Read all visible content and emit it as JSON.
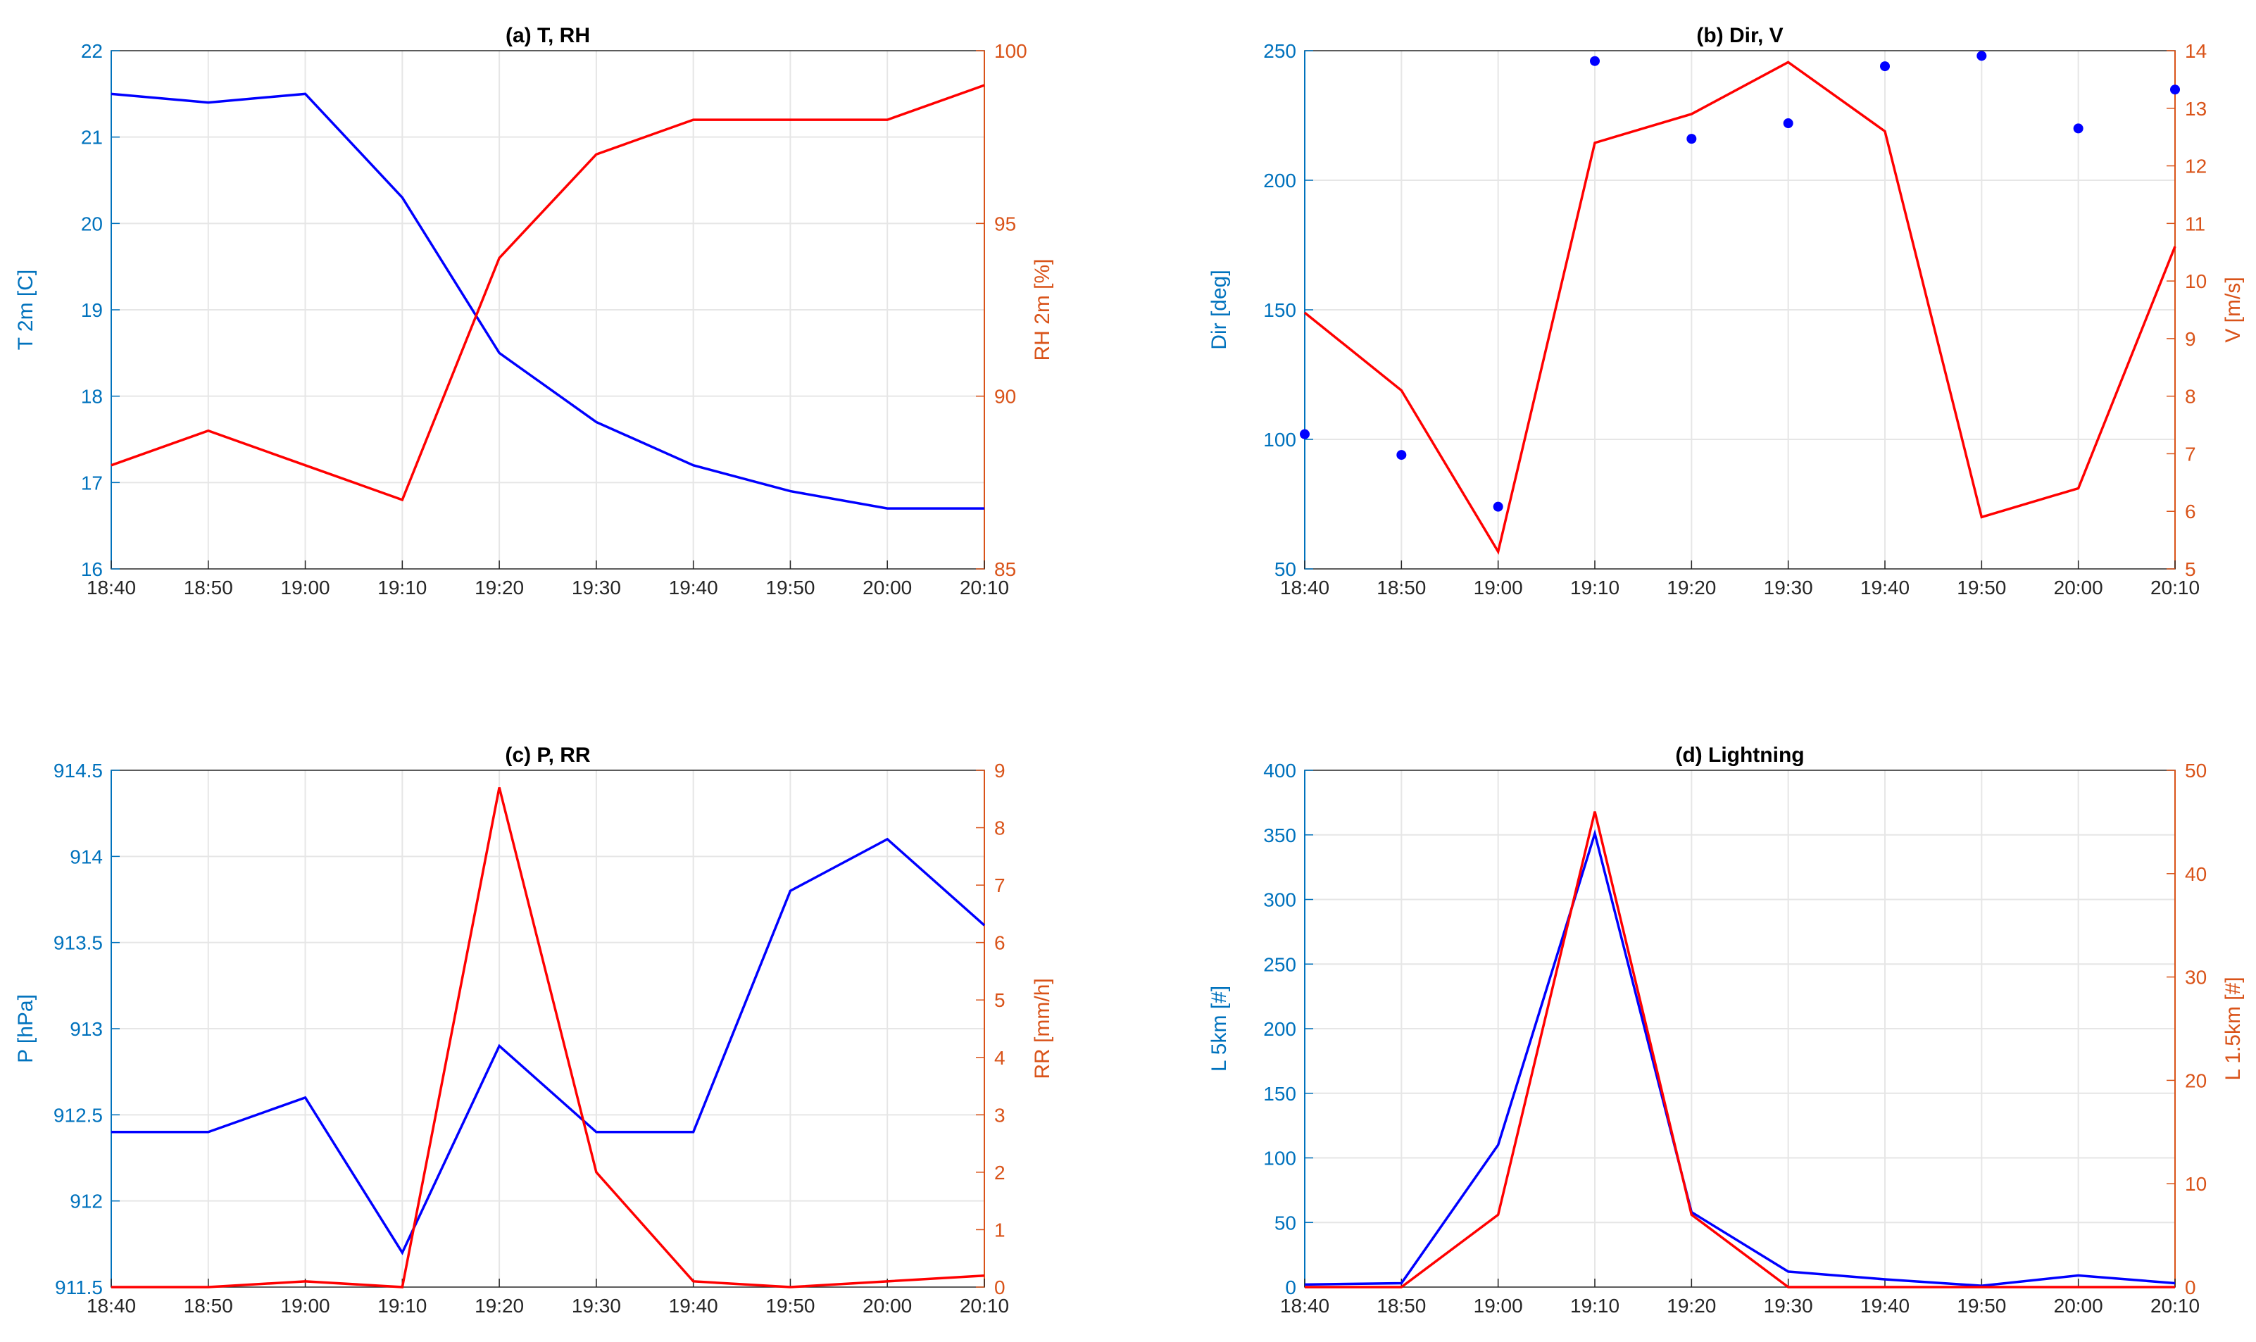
{
  "colors": {
    "left_axis": "#0072BD",
    "right_axis": "#D95319",
    "series_blue": "#0000FF",
    "series_red": "#FF0000",
    "grid": "#E6E6E6",
    "frame": "#262626"
  },
  "chart_data": [
    {
      "type": "line",
      "title": "(a) T, RH",
      "categories": [
        "18:40",
        "18:50",
        "19:00",
        "19:10",
        "19:20",
        "19:30",
        "19:40",
        "19:50",
        "20:00",
        "20:10"
      ],
      "left_axis": {
        "label": "T 2m [C]",
        "ylim": [
          16,
          22
        ],
        "ticks": [
          "16",
          "17",
          "18",
          "19",
          "20",
          "21",
          "22"
        ]
      },
      "right_axis": {
        "label": "RH 2m [%]",
        "ylim": [
          85,
          100
        ],
        "ticks": [
          "85",
          "90",
          "95",
          "100"
        ]
      },
      "series": [
        {
          "name": "T 2m",
          "axis": "left",
          "style": "line",
          "color": "#0000FF",
          "values": [
            21.5,
            21.4,
            21.5,
            20.3,
            18.5,
            17.7,
            17.2,
            16.9,
            16.7,
            16.7
          ]
        },
        {
          "name": "RH 2m",
          "axis": "right",
          "style": "line",
          "color": "#FF0000",
          "values": [
            88,
            89,
            88,
            87,
            94,
            97,
            98,
            98,
            98,
            99
          ]
        }
      ]
    },
    {
      "type": "line",
      "title": "(b) Dir, V",
      "categories": [
        "18:40",
        "18:50",
        "19:00",
        "19:10",
        "19:20",
        "19:30",
        "19:40",
        "19:50",
        "20:00",
        "20:10"
      ],
      "left_axis": {
        "label": "Dir [deg]",
        "ylim": [
          50,
          250
        ],
        "ticks": [
          "50",
          "100",
          "150",
          "200",
          "250"
        ]
      },
      "right_axis": {
        "label": "V [m/s]",
        "ylim": [
          5,
          14
        ],
        "ticks": [
          "5",
          "6",
          "7",
          "8",
          "9",
          "10",
          "11",
          "12",
          "13",
          "14"
        ]
      },
      "series": [
        {
          "name": "Dir",
          "axis": "left",
          "style": "scatter",
          "color": "#0000FF",
          "values": [
            102,
            94,
            74,
            246,
            216,
            222,
            244,
            248,
            220,
            235
          ]
        },
        {
          "name": "V",
          "axis": "right",
          "style": "line",
          "color": "#FF0000",
          "values": [
            9.45,
            8.1,
            5.3,
            12.4,
            12.9,
            13.8,
            12.6,
            5.9,
            6.4,
            10.6
          ]
        }
      ]
    },
    {
      "type": "line",
      "title": "(c) P, RR",
      "categories": [
        "18:40",
        "18:50",
        "19:00",
        "19:10",
        "19:20",
        "19:30",
        "19:40",
        "19:50",
        "20:00",
        "20:10"
      ],
      "left_axis": {
        "label": "P [hPa]",
        "ylim": [
          911.5,
          914.5
        ],
        "ticks": [
          "911.5",
          "912",
          "912.5",
          "913",
          "913.5",
          "914",
          "914.5"
        ]
      },
      "right_axis": {
        "label": "RR [mm/h]",
        "ylim": [
          0,
          9
        ],
        "ticks": [
          "0",
          "1",
          "2",
          "3",
          "4",
          "5",
          "6",
          "7",
          "8",
          "9"
        ]
      },
      "series": [
        {
          "name": "P",
          "axis": "left",
          "style": "line",
          "color": "#0000FF",
          "values": [
            912.4,
            912.4,
            912.6,
            911.7,
            912.9,
            912.4,
            912.4,
            913.8,
            914.1,
            913.6
          ]
        },
        {
          "name": "RR",
          "axis": "right",
          "style": "line",
          "color": "#FF0000",
          "values": [
            0,
            0,
            0.1,
            0,
            8.7,
            2.0,
            0.1,
            0,
            0.1,
            0.2
          ]
        }
      ]
    },
    {
      "type": "line",
      "title": "(d) Lightning",
      "categories": [
        "18:40",
        "18:50",
        "19:00",
        "19:10",
        "19:20",
        "19:30",
        "19:40",
        "19:50",
        "20:00",
        "20:10"
      ],
      "left_axis": {
        "label": "L 5km [#]",
        "ylim": [
          0,
          400
        ],
        "ticks": [
          "0",
          "50",
          "100",
          "150",
          "200",
          "250",
          "300",
          "350",
          "400"
        ]
      },
      "right_axis": {
        "label": "L 1.5km [#]",
        "ylim": [
          0,
          50
        ],
        "ticks": [
          "0",
          "10",
          "20",
          "30",
          "40",
          "50"
        ]
      },
      "series": [
        {
          "name": "L 5km",
          "axis": "left",
          "style": "line",
          "color": "#0000FF",
          "values": [
            2,
            3,
            110,
            351,
            58,
            12,
            6,
            1,
            9,
            3
          ]
        },
        {
          "name": "L 1.5km",
          "axis": "right",
          "style": "line",
          "color": "#FF0000",
          "values": [
            0,
            0,
            7,
            46,
            7,
            0,
            0,
            0,
            0,
            0
          ]
        }
      ]
    }
  ]
}
